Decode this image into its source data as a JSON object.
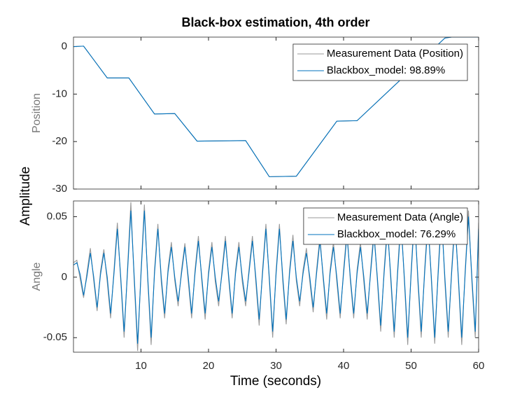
{
  "figure": {
    "title": "Black-box estimation, 4th order",
    "xlabel": "Time (seconds)",
    "ylabel": "Amplitude"
  },
  "chart_data": [
    {
      "type": "line",
      "ylabel": "Position",
      "legend": "northeast",
      "xlim": [
        0,
        60
      ],
      "ylim": [
        -30,
        2
      ],
      "yticks": [
        -30,
        -20,
        -10,
        0
      ],
      "x": [
        0,
        1.5,
        5,
        8.2,
        12,
        15,
        18.3,
        25.5,
        29,
        33,
        39,
        42,
        55,
        56,
        60
      ],
      "series": [
        {
          "name": "Measurement Data (Position)",
          "color": "#999999",
          "values": [
            0,
            0.1,
            -6.6,
            -6.6,
            -14.2,
            -14.1,
            -19.9,
            -19.8,
            -27.4,
            -27.3,
            -15.7,
            -15.6,
            1.8,
            2.0,
            2.0
          ]
        },
        {
          "name": "Blackbox_model: 98.89%",
          "color": "#0072bd",
          "values": [
            0,
            0.1,
            -6.6,
            -6.6,
            -14.2,
            -14.1,
            -19.9,
            -19.8,
            -27.4,
            -27.3,
            -15.7,
            -15.6,
            1.8,
            2.0,
            2.0
          ]
        }
      ]
    },
    {
      "type": "line",
      "ylabel": "Angle",
      "legend": "northeast",
      "xlim": [
        0,
        60
      ],
      "ylim": [
        -0.062,
        0.063
      ],
      "yticks": [
        -0.05,
        0,
        0.05
      ],
      "xticks": [
        10,
        20,
        30,
        40,
        50,
        60
      ],
      "x": [
        0,
        0.5,
        1,
        1.5,
        2,
        2.5,
        3,
        3.5,
        4,
        4.5,
        5,
        5.5,
        6,
        6.5,
        7,
        7.5,
        8,
        8.5,
        9,
        9.5,
        10,
        10.5,
        11,
        11.5,
        12,
        12.5,
        13,
        13.5,
        14,
        14.5,
        15,
        15.5,
        16,
        16.5,
        17,
        17.5,
        18,
        18.5,
        19,
        19.5,
        20,
        20.5,
        21,
        21.5,
        22,
        22.5,
        23,
        23.5,
        24,
        24.5,
        25,
        25.5,
        26,
        26.5,
        27,
        27.5,
        28,
        28.5,
        29,
        29.5,
        30,
        30.5,
        31,
        31.5,
        32,
        32.5,
        33,
        33.5,
        34,
        34.5,
        35,
        35.5,
        36,
        36.5,
        37,
        37.5,
        38,
        38.5,
        39,
        39.5,
        40,
        40.5,
        41,
        41.5,
        42,
        42.5,
        43,
        43.5,
        44,
        44.5,
        45,
        45.5,
        46,
        46.5,
        47,
        47.5,
        48,
        48.5,
        49,
        49.5,
        50,
        50.5,
        51,
        51.5,
        52,
        52.5,
        53,
        53.5,
        54,
        54.5,
        55,
        55.5,
        56,
        56.5,
        57,
        57.5,
        58,
        58.5,
        59,
        59.5,
        60
      ],
      "series": [
        {
          "name": "Measurement Data (Angle)",
          "color": "#999999",
          "values": [
            0.012,
            0.014,
            -0.002,
            -0.017,
            0.004,
            0.024,
            -0.003,
            -0.028,
            0.005,
            0.023,
            -0.004,
            -0.034,
            0.006,
            0.045,
            -0.003,
            -0.05,
            0.007,
            0.062,
            -0.004,
            -0.061,
            0.005,
            0.06,
            -0.003,
            -0.056,
            0.006,
            0.044,
            -0.004,
            -0.034,
            0.007,
            0.029,
            -0.003,
            -0.024,
            0.006,
            0.028,
            -0.004,
            -0.034,
            0.006,
            0.034,
            -0.003,
            -0.035,
            0.005,
            0.029,
            -0.004,
            -0.024,
            0.006,
            0.034,
            -0.003,
            -0.034,
            0.006,
            0.029,
            -0.004,
            -0.024,
            0.007,
            0.034,
            -0.004,
            -0.04,
            0.006,
            0.044,
            -0.003,
            -0.05,
            0.005,
            0.044,
            -0.004,
            -0.039,
            0.006,
            0.035,
            -0.003,
            -0.024,
            0.006,
            0.024,
            -0.004,
            -0.029,
            0.006,
            0.034,
            -0.003,
            -0.035,
            0.006,
            0.029,
            -0.004,
            -0.034,
            0.006,
            0.039,
            -0.003,
            -0.034,
            0.006,
            0.029,
            -0.004,
            -0.035,
            0.006,
            0.04,
            -0.003,
            -0.045,
            0.006,
            0.045,
            -0.004,
            -0.05,
            0.006,
            0.05,
            -0.003,
            -0.056,
            0.005,
            0.055,
            -0.004,
            -0.05,
            0.006,
            0.05,
            -0.003,
            -0.055,
            0.005,
            0.056,
            -0.004,
            -0.05,
            0.006,
            0.05,
            -0.003,
            -0.056,
            0.005,
            0.055,
            -0.004,
            -0.05,
            0.045
          ]
        },
        {
          "name": "Blackbox_model: 76.29%",
          "color": "#0072bd",
          "values": [
            0.01,
            0.012,
            0.002,
            -0.015,
            0.001,
            0.02,
            0,
            -0.025,
            0.002,
            0.02,
            0,
            -0.03,
            0.003,
            0.04,
            0,
            -0.045,
            0.004,
            0.055,
            0,
            -0.055,
            0.002,
            0.055,
            0,
            -0.05,
            0.003,
            0.04,
            0,
            -0.03,
            0.004,
            0.025,
            0,
            -0.02,
            0.003,
            0.025,
            0,
            -0.03,
            0.003,
            0.03,
            0,
            -0.03,
            0.002,
            0.025,
            0,
            -0.02,
            0.003,
            0.03,
            0,
            -0.03,
            0.003,
            0.025,
            0,
            -0.02,
            0.004,
            0.03,
            0,
            -0.035,
            0.003,
            0.04,
            0,
            -0.045,
            0.002,
            0.04,
            0,
            -0.035,
            0.003,
            0.03,
            0,
            -0.02,
            0.003,
            0.02,
            0,
            -0.025,
            0.003,
            0.03,
            0,
            -0.03,
            0.003,
            0.025,
            0,
            -0.03,
            0.003,
            0.035,
            0,
            -0.03,
            0.003,
            0.025,
            0,
            -0.03,
            0.003,
            0.035,
            0,
            -0.04,
            0.003,
            0.04,
            0,
            -0.045,
            0.003,
            0.045,
            0,
            -0.05,
            0.002,
            0.05,
            0,
            -0.045,
            0.003,
            0.045,
            0,
            -0.05,
            0.002,
            0.05,
            0,
            -0.045,
            0.003,
            0.045,
            0,
            -0.05,
            0.002,
            0.05,
            0,
            -0.045,
            0.04
          ]
        }
      ]
    }
  ]
}
